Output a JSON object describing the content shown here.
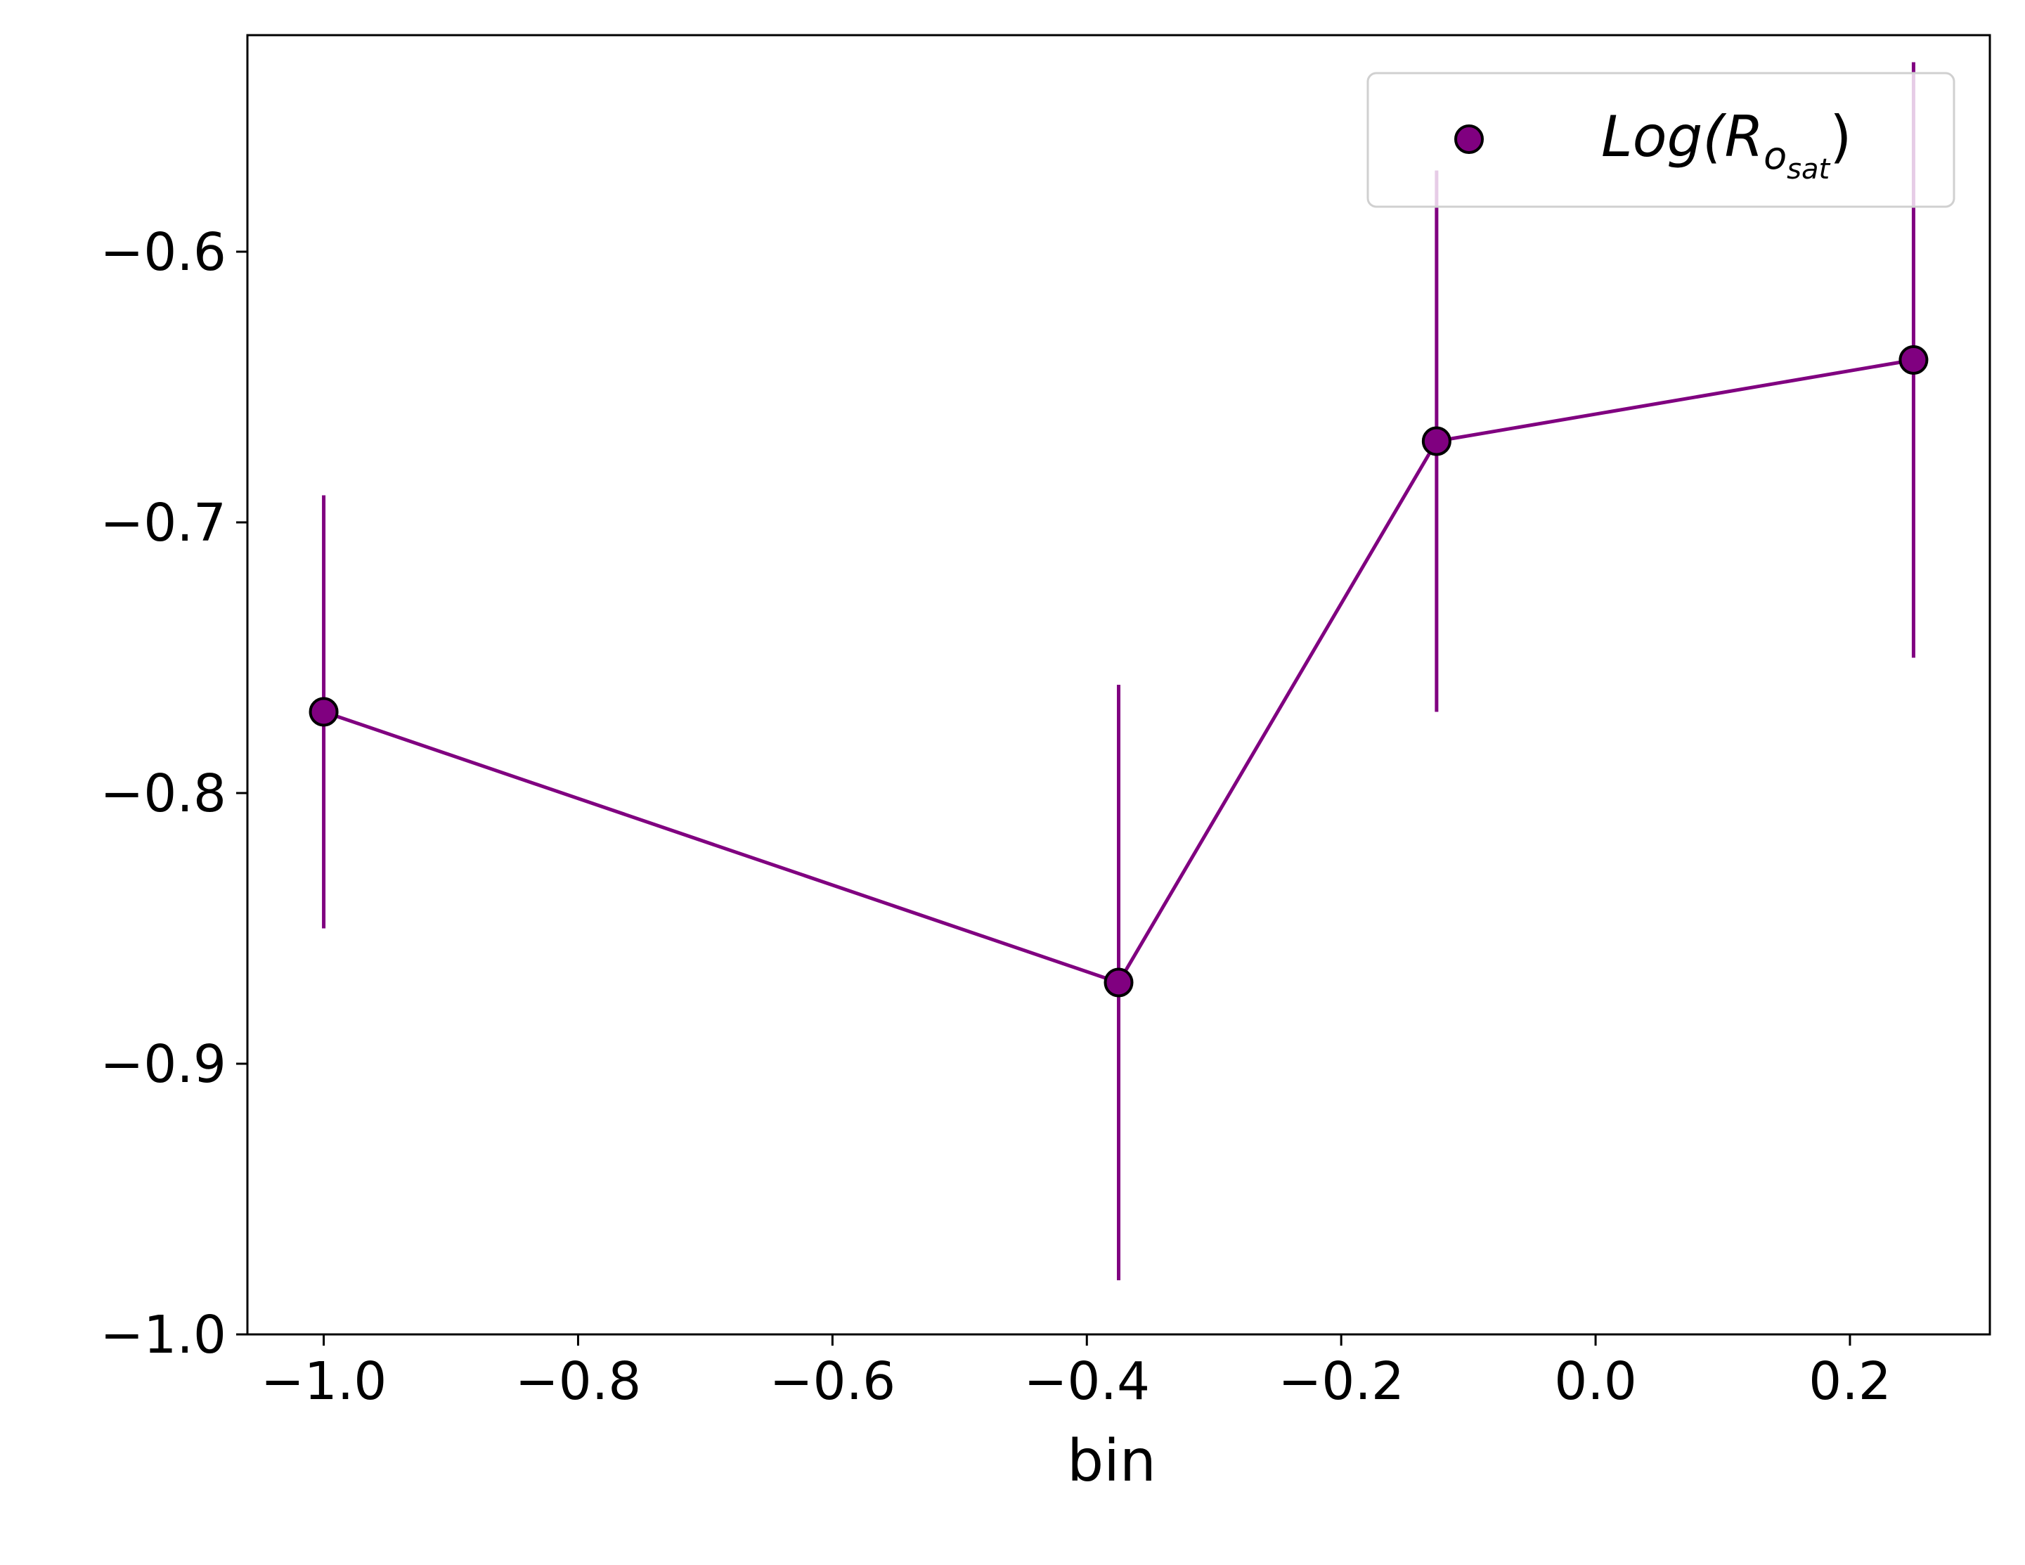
{
  "chart_data": {
    "type": "line",
    "xlabel": "bin",
    "ylabel": "",
    "xlim": [
      -1.06,
      0.31
    ],
    "ylim": [
      -1.0,
      -0.52
    ],
    "xticks": [
      -1.0,
      -0.8,
      -0.6,
      -0.4,
      -0.2,
      0.0,
      0.2
    ],
    "xtick_labels": [
      "−1.0",
      "−0.8",
      "−0.6",
      "−0.4",
      "−0.2",
      "0.0",
      "0.2"
    ],
    "yticks": [
      -1.0,
      -0.9,
      -0.8,
      -0.7,
      -0.6
    ],
    "ytick_labels": [
      "−1.0",
      "−0.9",
      "−0.8",
      "−0.7",
      "−0.6"
    ],
    "grid": false,
    "legend_position": "top-right",
    "series": [
      {
        "name": "Log(R",
        "name_sub1": "o",
        "name_sub2": "sat",
        "name_close": ")",
        "color": "#800080",
        "marker_edge_color": "#000000",
        "x": [
          -1.0,
          -0.375,
          -0.125,
          0.25
        ],
        "y": [
          -0.77,
          -0.87,
          -0.67,
          -0.64
        ],
        "yerr": [
          0.08,
          0.11,
          0.1,
          0.11
        ]
      }
    ]
  }
}
